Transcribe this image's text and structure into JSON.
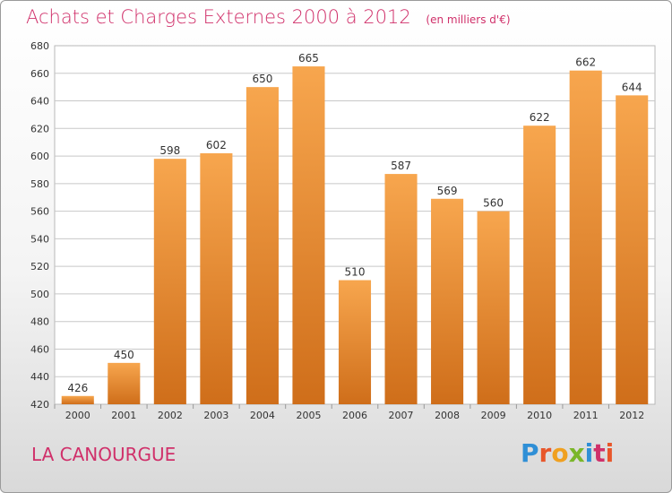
{
  "header": {
    "title": "Achats et Charges Externes 2000 à 2012",
    "unit": "(en milliers d'€)"
  },
  "footer": {
    "place": "LA CANOURGUE",
    "logo": {
      "text": "Proxiti",
      "letter_colors": [
        "#2f8fd6",
        "#e8562a",
        "#f0a020",
        "#7ab629",
        "#2f8fd6",
        "#d0306a",
        "#e8562a"
      ]
    }
  },
  "colors": {
    "accent": "#d0306a",
    "bar_top": "#f7a64e",
    "bar_bottom": "#cf6e1a",
    "grid": "#c8c8c8"
  },
  "chart_data": {
    "type": "bar",
    "title": "Achats et Charges Externes 2000 à 2012",
    "subtitle": "(en milliers d'€)",
    "categories": [
      "2000",
      "2001",
      "2002",
      "2003",
      "2004",
      "2005",
      "2006",
      "2007",
      "2008",
      "2009",
      "2010",
      "2011",
      "2012"
    ],
    "values": [
      426,
      450,
      598,
      602,
      650,
      665,
      510,
      587,
      569,
      560,
      622,
      662,
      644
    ],
    "xlabel": "",
    "ylabel": "",
    "ylim": [
      420,
      680
    ],
    "yticks": [
      420,
      440,
      460,
      480,
      500,
      520,
      540,
      560,
      580,
      600,
      620,
      640,
      660,
      680
    ],
    "grid": true,
    "data_labels": true
  }
}
